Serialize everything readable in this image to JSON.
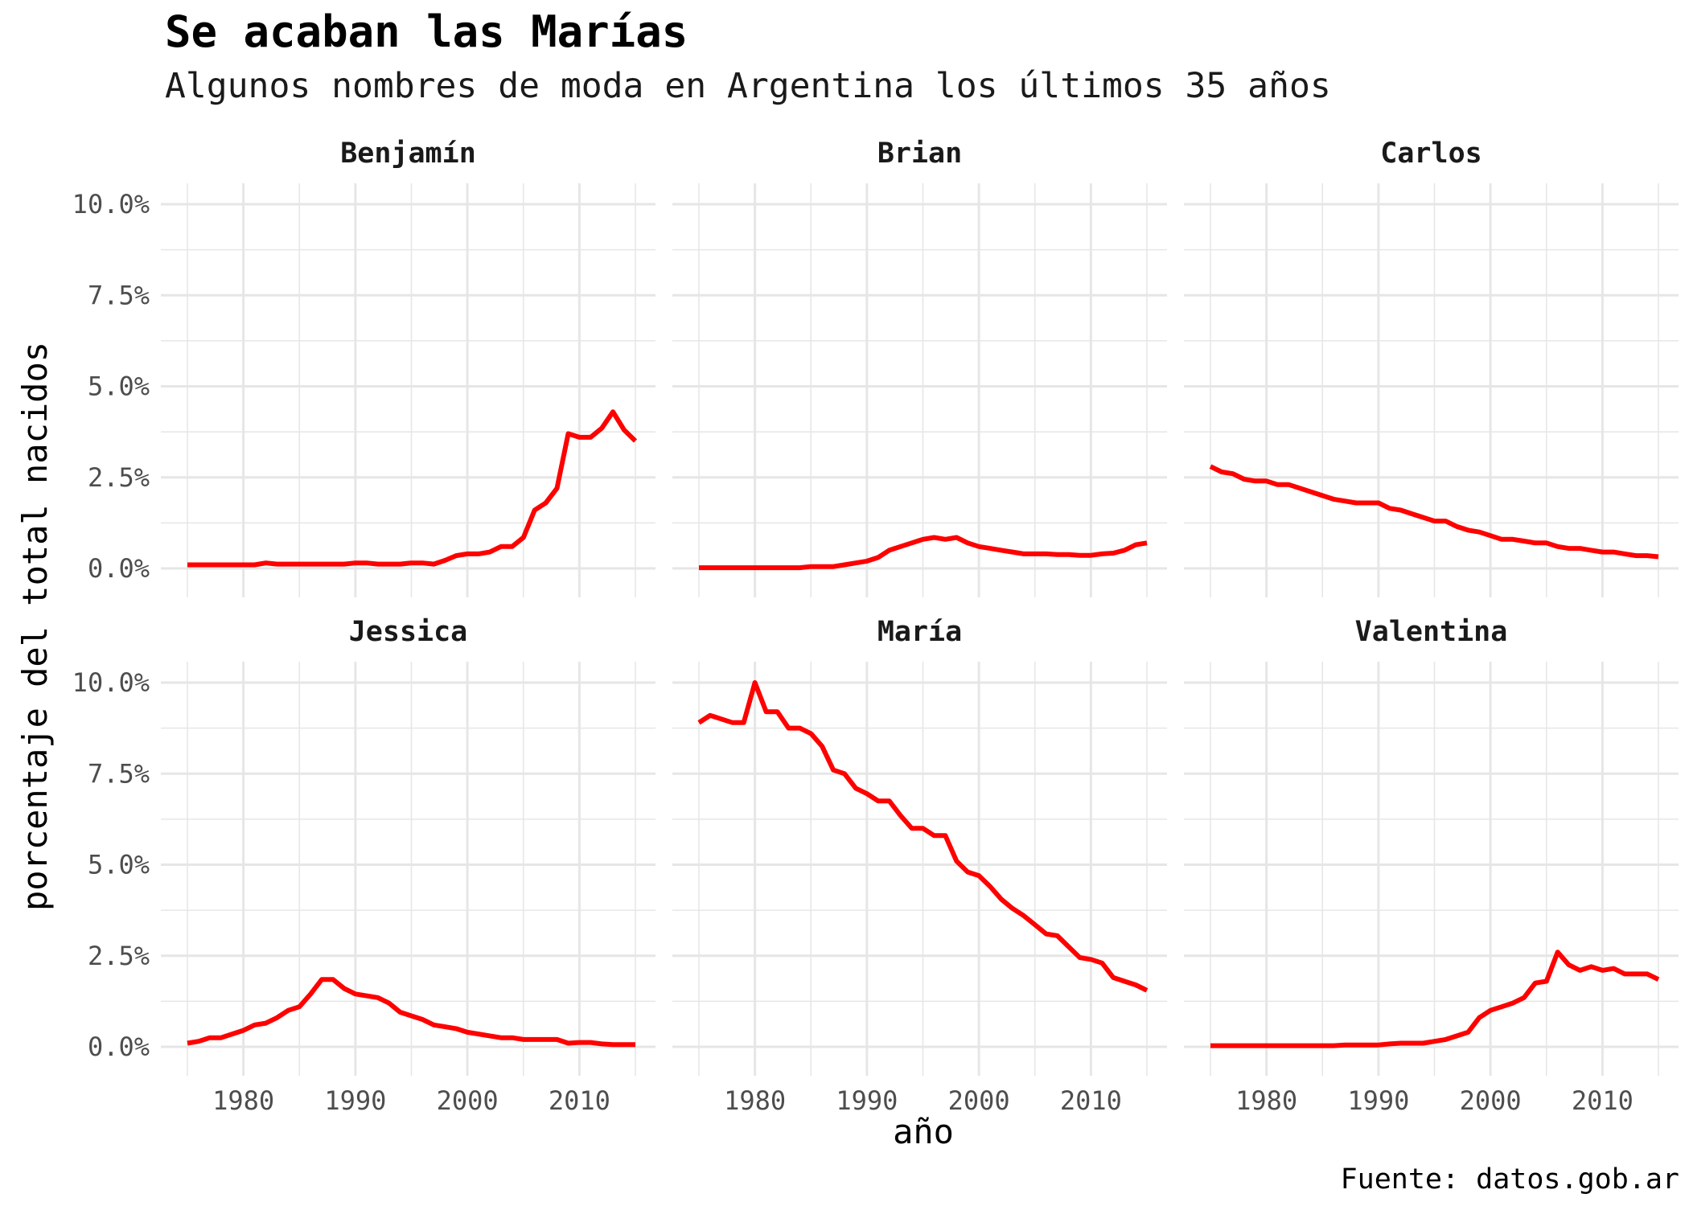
{
  "title": "Se acaban las Marías",
  "subtitle": "Algunos nombres de moda en Argentina los últimos 35 años",
  "caption": "Fuente: datos.gob.ar",
  "colors": {
    "line": "#ff0000",
    "grid": "#e6e6e6",
    "text": "#4d4d4d"
  },
  "chart_data": {
    "type": "line",
    "layout": "facets 2x3",
    "xlabel": "año",
    "ylabel": "porcentaje del total nacidos",
    "xlim": [
      1975,
      2015
    ],
    "ylim": [
      0,
      10
    ],
    "x_ticks": [
      1980,
      1990,
      2000,
      2010
    ],
    "x_tick_labels": [
      "1980",
      "1990",
      "2000",
      "2010"
    ],
    "y_ticks": [
      0,
      2.5,
      5,
      7.5,
      10
    ],
    "y_tick_labels": [
      "0.0%",
      "2.5%",
      "5.0%",
      "7.5%",
      "10.0%"
    ],
    "grid": true,
    "x": [
      1975,
      1976,
      1977,
      1978,
      1979,
      1980,
      1981,
      1982,
      1983,
      1984,
      1985,
      1986,
      1987,
      1988,
      1989,
      1990,
      1991,
      1992,
      1993,
      1994,
      1995,
      1996,
      1997,
      1998,
      1999,
      2000,
      2001,
      2002,
      2003,
      2004,
      2005,
      2006,
      2007,
      2008,
      2009,
      2010,
      2011,
      2012,
      2013,
      2014,
      2015
    ],
    "series": [
      {
        "name": "Benjamín",
        "values": [
          0.1,
          0.1,
          0.1,
          0.1,
          0.1,
          0.1,
          0.1,
          0.15,
          0.12,
          0.12,
          0.12,
          0.12,
          0.12,
          0.12,
          0.12,
          0.15,
          0.15,
          0.12,
          0.12,
          0.12,
          0.15,
          0.15,
          0.12,
          0.22,
          0.35,
          0.4,
          0.4,
          0.45,
          0.6,
          0.6,
          0.85,
          1.6,
          1.8,
          2.2,
          3.7,
          3.6,
          3.6,
          3.85,
          4.3,
          3.8,
          3.5
        ]
      },
      {
        "name": "Brian",
        "values": [
          0.02,
          0.02,
          0.02,
          0.02,
          0.02,
          0.02,
          0.02,
          0.02,
          0.02,
          0.02,
          0.05,
          0.05,
          0.05,
          0.1,
          0.15,
          0.2,
          0.3,
          0.5,
          0.6,
          0.7,
          0.8,
          0.85,
          0.8,
          0.85,
          0.7,
          0.6,
          0.55,
          0.5,
          0.45,
          0.4,
          0.4,
          0.4,
          0.38,
          0.38,
          0.36,
          0.36,
          0.4,
          0.42,
          0.5,
          0.65,
          0.7
        ]
      },
      {
        "name": "Carlos",
        "values": [
          2.8,
          2.65,
          2.6,
          2.45,
          2.4,
          2.4,
          2.3,
          2.3,
          2.2,
          2.1,
          2.0,
          1.9,
          1.85,
          1.8,
          1.8,
          1.8,
          1.65,
          1.6,
          1.5,
          1.4,
          1.3,
          1.3,
          1.15,
          1.05,
          1.0,
          0.9,
          0.8,
          0.8,
          0.75,
          0.7,
          0.7,
          0.6,
          0.55,
          0.55,
          0.5,
          0.45,
          0.45,
          0.4,
          0.35,
          0.35,
          0.32
        ]
      },
      {
        "name": "Jessica",
        "values": [
          0.1,
          0.15,
          0.25,
          0.25,
          0.35,
          0.45,
          0.6,
          0.65,
          0.8,
          1.0,
          1.1,
          1.45,
          1.85,
          1.85,
          1.6,
          1.45,
          1.4,
          1.35,
          1.2,
          0.95,
          0.85,
          0.75,
          0.6,
          0.55,
          0.5,
          0.4,
          0.35,
          0.3,
          0.25,
          0.25,
          0.2,
          0.2,
          0.2,
          0.2,
          0.1,
          0.12,
          0.12,
          0.08,
          0.06,
          0.06,
          0.06
        ]
      },
      {
        "name": "María",
        "values": [
          8.9,
          9.1,
          9.0,
          8.9,
          8.9,
          10.0,
          9.2,
          9.2,
          8.75,
          8.75,
          8.6,
          8.25,
          7.6,
          7.5,
          7.1,
          6.95,
          6.75,
          6.75,
          6.35,
          6.0,
          6.0,
          5.8,
          5.8,
          5.1,
          4.8,
          4.7,
          4.4,
          4.05,
          3.8,
          3.6,
          3.35,
          3.1,
          3.05,
          2.75,
          2.45,
          2.4,
          2.3,
          1.9,
          1.8,
          1.7,
          1.55
        ]
      },
      {
        "name": "Valentina",
        "values": [
          0.03,
          0.03,
          0.03,
          0.03,
          0.03,
          0.03,
          0.03,
          0.03,
          0.03,
          0.03,
          0.03,
          0.03,
          0.05,
          0.05,
          0.05,
          0.05,
          0.08,
          0.1,
          0.1,
          0.1,
          0.15,
          0.2,
          0.3,
          0.4,
          0.8,
          1.0,
          1.1,
          1.2,
          1.35,
          1.75,
          1.8,
          2.6,
          2.25,
          2.1,
          2.2,
          2.1,
          2.15,
          2.0,
          2.0,
          2.0,
          1.85
        ]
      }
    ]
  }
}
